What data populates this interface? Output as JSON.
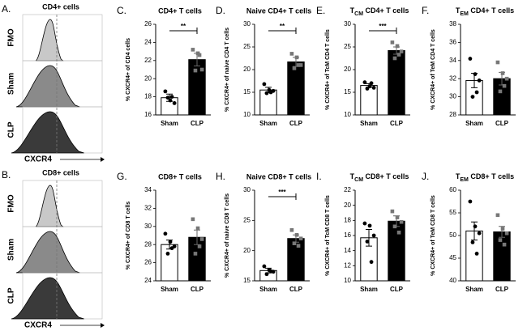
{
  "flow_panels": [
    {
      "label": "A.",
      "title": "CD4+ cells",
      "rows": [
        "FMO",
        "Sham",
        "CLP"
      ],
      "x_label": "CXCR4"
    },
    {
      "label": "B.",
      "title": "CD8+ cells",
      "rows": [
        "FMO",
        "Sham",
        "CLP"
      ],
      "x_label": "CXCR4"
    }
  ],
  "chart_data": [
    {
      "type": "bar",
      "label": "C.",
      "title": "CD4+ T cells",
      "y_label": "% CXCR4+ of CD4 cells",
      "categories": [
        "Sham",
        "CLP"
      ],
      "colors": [
        "#ffffff",
        "#000000"
      ],
      "values": [
        17.9,
        22.1
      ],
      "errors": [
        0.4,
        0.7
      ],
      "points": [
        [
          18.6,
          17.6,
          17.3,
          17.9,
          18.0
        ],
        [
          23.2,
          22.8,
          21.0,
          20.9,
          22.6
        ]
      ],
      "ylim": [
        16,
        26
      ],
      "yticks": [
        16,
        18,
        20,
        22,
        24,
        26
      ],
      "significance": "**"
    },
    {
      "type": "bar",
      "label": "D.",
      "title": "Naive CD4+ T cells",
      "y_label": "% CXCR4+ of naive CD4 T cells",
      "categories": [
        "Sham",
        "CLP"
      ],
      "colors": [
        "#ffffff",
        "#000000"
      ],
      "values": [
        15.5,
        21.7
      ],
      "errors": [
        0.6,
        1.0
      ],
      "points": [
        [
          16.8,
          15.5,
          15.3,
          14.8,
          15.0
        ],
        [
          23.5,
          22.7,
          21.0,
          20.3,
          21.0
        ]
      ],
      "ylim": [
        10,
        30
      ],
      "yticks": [
        10,
        15,
        20,
        25,
        30
      ],
      "significance": "**"
    },
    {
      "type": "bar",
      "label": "E.",
      "title_parts": [
        "T",
        "CM",
        " CD4+ T cells"
      ],
      "y_label": "% CXCR4+ of TcM CD4 T cells",
      "categories": [
        "Sham",
        "CLP"
      ],
      "colors": [
        "#ffffff",
        "#000000"
      ],
      "values": [
        16.5,
        24.2
      ],
      "errors": [
        0.4,
        0.8
      ],
      "points": [
        [
          17.2,
          16.3,
          16.0,
          15.8,
          17.0
        ],
        [
          26.0,
          25.2,
          24.0,
          22.5,
          23.3
        ]
      ],
      "ylim": [
        10,
        30
      ],
      "yticks": [
        10,
        15,
        20,
        25,
        30
      ],
      "significance": "***"
    },
    {
      "type": "bar",
      "label": "F.",
      "title_parts": [
        "T",
        "EM",
        " CD4+ T cells"
      ],
      "y_label": "% CXCR4+ of TeM CD4 T cells",
      "categories": [
        "Sham",
        "CLP"
      ],
      "colors": [
        "#ffffff",
        "#000000"
      ],
      "values": [
        31.8,
        32.0
      ],
      "errors": [
        0.8,
        0.7
      ],
      "points": [
        [
          34.2,
          32.5,
          31.8,
          30.0,
          30.5
        ],
        [
          33.8,
          32.6,
          32.0,
          30.6,
          31.2
        ]
      ],
      "ylim": [
        28,
        38
      ],
      "yticks": [
        28,
        30,
        32,
        34,
        36,
        38
      ]
    },
    {
      "type": "bar",
      "label": "G.",
      "title": "CD8+ T cells",
      "y_label": "% CXCR4+ of CD8 T cells",
      "categories": [
        "Sham",
        "CLP"
      ],
      "colors": [
        "#ffffff",
        "#000000"
      ],
      "values": [
        28.0,
        28.8
      ],
      "errors": [
        0.5,
        0.8
      ],
      "points": [
        [
          29.2,
          28.3,
          27.8,
          27.0,
          27.6
        ],
        [
          30.8,
          29.8,
          28.6,
          27.0,
          27.8
        ]
      ],
      "ylim": [
        24,
        34
      ],
      "yticks": [
        24,
        26,
        28,
        30,
        32,
        34
      ]
    },
    {
      "type": "bar",
      "label": "H.",
      "title": "Naive CD8+ T cells",
      "y_label": "% CXCR4+ of naive CD8 T cells",
      "categories": [
        "Sham",
        "CLP"
      ],
      "colors": [
        "#ffffff",
        "#000000"
      ],
      "values": [
        16.7,
        22.0
      ],
      "errors": [
        0.4,
        0.6
      ],
      "points": [
        [
          17.4,
          16.8,
          16.5,
          16.1,
          16.6
        ],
        [
          23.4,
          22.6,
          22.0,
          21.2,
          20.8
        ]
      ],
      "ylim": [
        15,
        30
      ],
      "yticks": [
        15,
        20,
        25,
        30
      ],
      "significance": "***"
    },
    {
      "type": "bar",
      "label": "I.",
      "title_parts": [
        "T",
        "CM",
        " CD8+ T cells"
      ],
      "y_label": "% CXCR4+ of TcM CD8 T cells",
      "categories": [
        "Sham",
        "CLP"
      ],
      "colors": [
        "#ffffff",
        "#000000"
      ],
      "values": [
        15.7,
        17.9
      ],
      "errors": [
        1.1,
        0.7
      ],
      "points": [
        [
          17.6,
          17.3,
          16.0,
          15.2,
          12.5
        ],
        [
          19.2,
          18.4,
          17.8,
          17.2,
          16.4
        ]
      ],
      "ylim": [
        10,
        22
      ],
      "yticks": [
        10,
        12,
        14,
        16,
        18,
        20,
        22
      ]
    },
    {
      "type": "bar",
      "label": "J.",
      "title_parts": [
        "T",
        "EM",
        " CD8+ T cells"
      ],
      "y_label": "% CXCR4+ of TeM CD8 T cells",
      "categories": [
        "Sham",
        "CLP"
      ],
      "colors": [
        "#ffffff",
        "#000000"
      ],
      "values": [
        51.0,
        50.8
      ],
      "errors": [
        2.0,
        1.2
      ],
      "points": [
        [
          57.5,
          52.0,
          50.5,
          48.5,
          46.0
        ],
        [
          54.5,
          51.5,
          50.5,
          49.0,
          48.0
        ]
      ],
      "ylim": [
        40,
        60
      ],
      "yticks": [
        40,
        45,
        50,
        55,
        60
      ]
    }
  ]
}
